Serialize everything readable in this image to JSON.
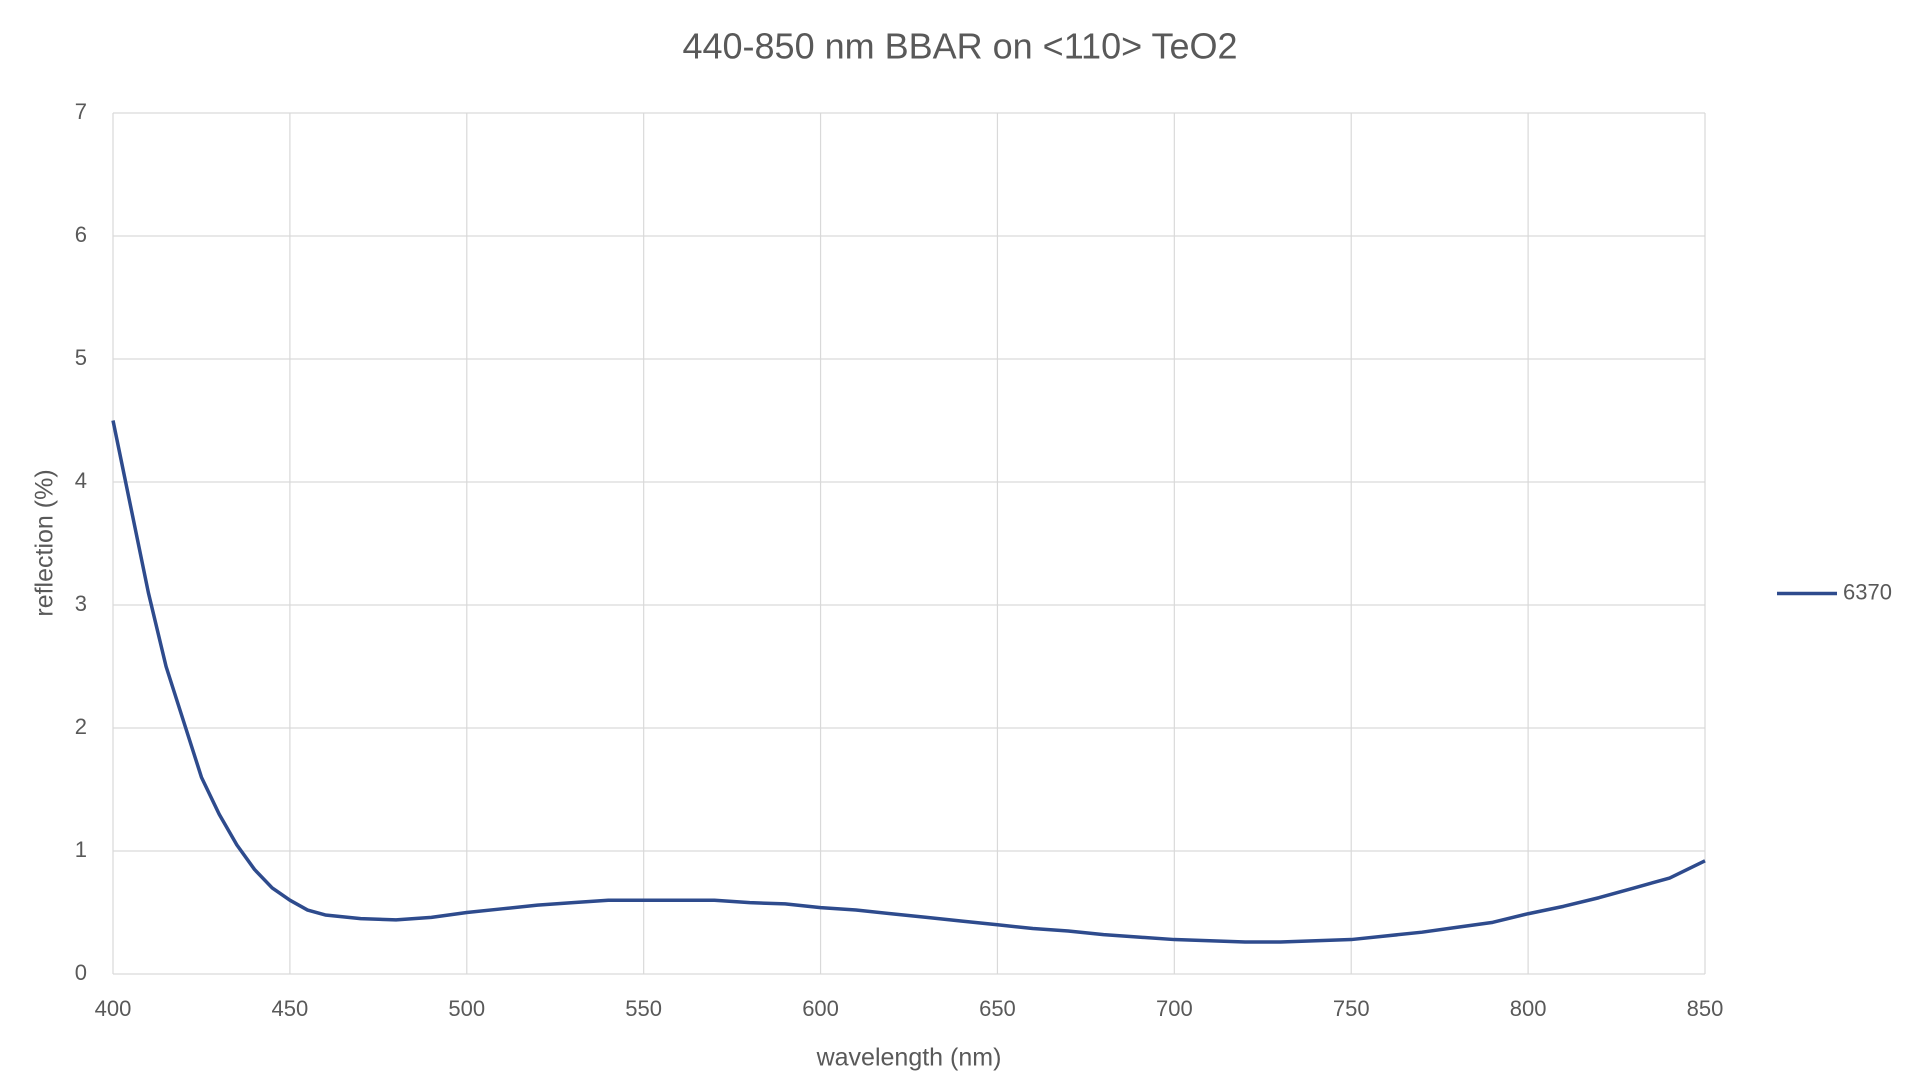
{
  "chart_data": {
    "type": "line",
    "title": "440-850 nm BBAR on <110> TeO2",
    "xlabel": "wavelength (nm)",
    "ylabel": "reflection (%)",
    "x": [
      400,
      405,
      410,
      415,
      420,
      425,
      430,
      435,
      440,
      445,
      450,
      455,
      460,
      470,
      480,
      490,
      500,
      510,
      520,
      530,
      540,
      550,
      560,
      570,
      580,
      590,
      600,
      610,
      620,
      630,
      640,
      650,
      660,
      670,
      680,
      690,
      700,
      710,
      720,
      730,
      740,
      750,
      760,
      770,
      780,
      790,
      800,
      810,
      820,
      830,
      840,
      850
    ],
    "series": [
      {
        "name": "6370",
        "color": "#2e4b8d",
        "values": [
          4.5,
          3.8,
          3.1,
          2.5,
          2.05,
          1.6,
          1.3,
          1.05,
          0.85,
          0.7,
          0.6,
          0.52,
          0.48,
          0.45,
          0.44,
          0.46,
          0.5,
          0.53,
          0.56,
          0.58,
          0.6,
          0.6,
          0.6,
          0.6,
          0.58,
          0.57,
          0.54,
          0.52,
          0.49,
          0.46,
          0.43,
          0.4,
          0.37,
          0.35,
          0.32,
          0.3,
          0.28,
          0.27,
          0.26,
          0.26,
          0.27,
          0.28,
          0.31,
          0.34,
          0.38,
          0.42,
          0.49,
          0.55,
          0.62,
          0.7,
          0.78,
          0.92
        ]
      }
    ],
    "xlim": [
      400,
      850
    ],
    "xticks": [
      400,
      450,
      500,
      550,
      600,
      650,
      700,
      750,
      800,
      850
    ],
    "ylim": [
      0,
      7
    ],
    "yticks": [
      0,
      1,
      2,
      3,
      4,
      5,
      6,
      7
    ],
    "grid": true,
    "legend": "right"
  }
}
